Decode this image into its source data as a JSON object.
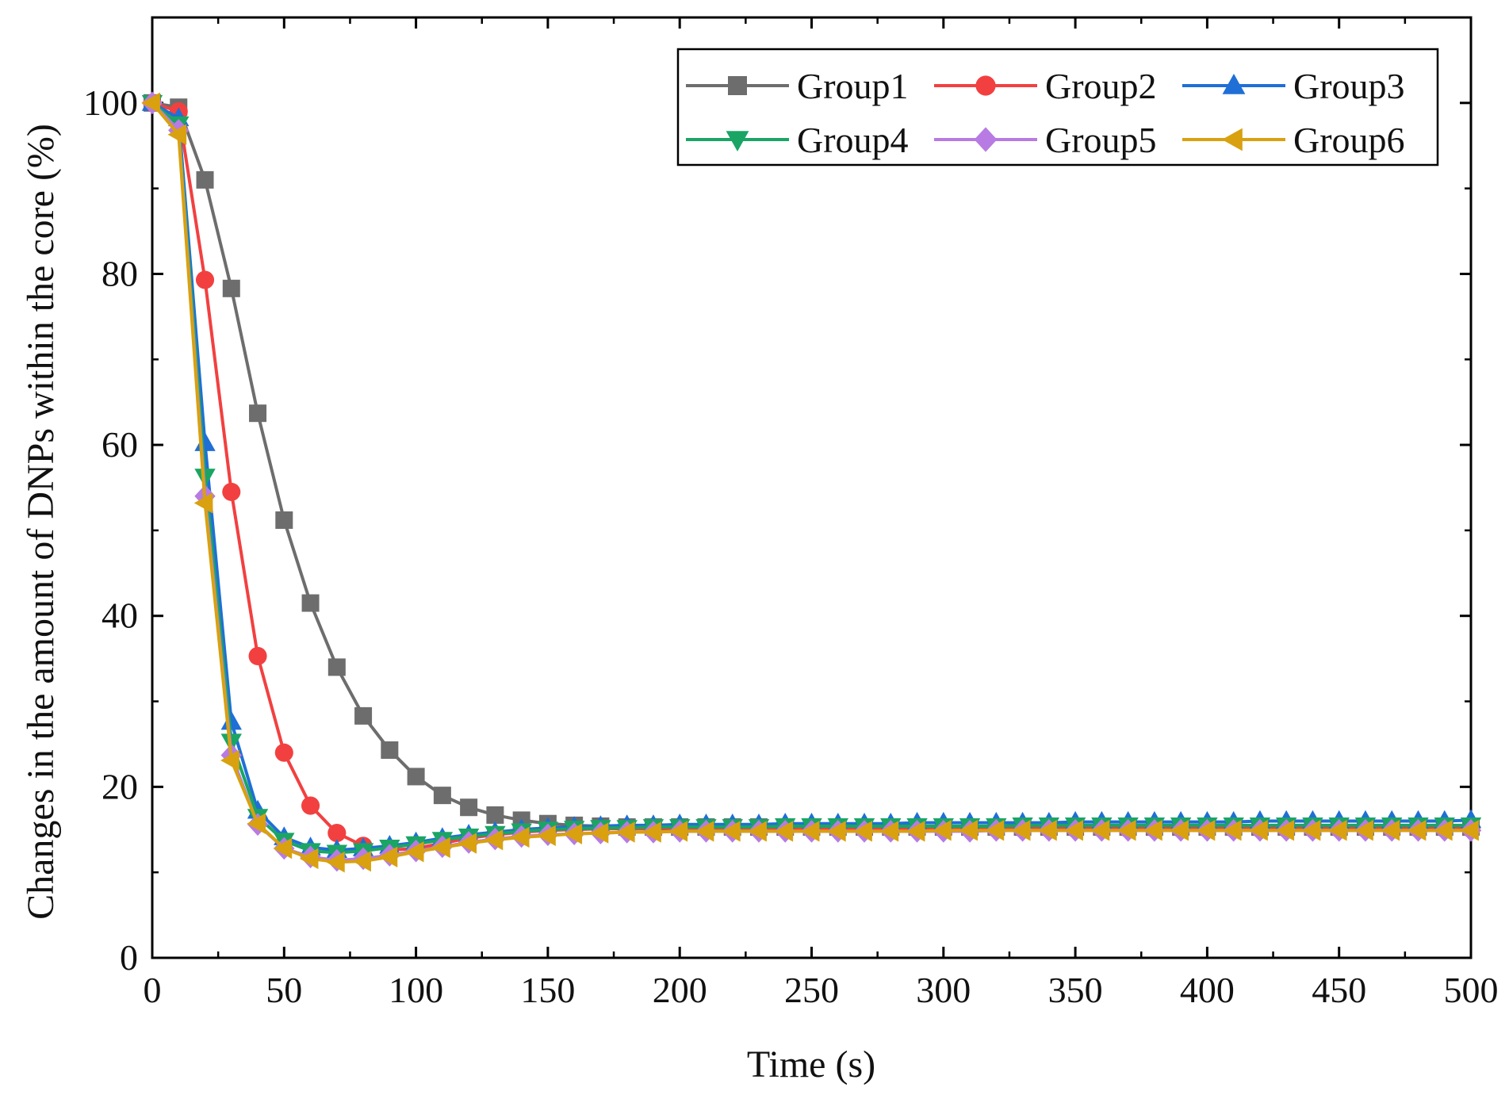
{
  "chart_data": {
    "type": "line",
    "title": "",
    "xlabel": "Time (s)",
    "ylabel": "Changes in the amount of DNPs within the core (%)",
    "xlim": [
      0,
      500
    ],
    "ylim": [
      0,
      110
    ],
    "xticks": [
      0,
      50,
      100,
      150,
      200,
      250,
      300,
      350,
      400,
      450,
      500
    ],
    "yticks": [
      0,
      20,
      40,
      60,
      80,
      100
    ],
    "xtick_labels": [
      "0",
      "50",
      "100",
      "150",
      "200",
      "250",
      "300",
      "350",
      "400",
      "450",
      "500"
    ],
    "ytick_labels": [
      "0",
      "20",
      "40",
      "60",
      "80",
      "100"
    ],
    "grid": false,
    "legend_position": "top-right",
    "x": [
      0,
      10,
      20,
      30,
      40,
      50,
      60,
      70,
      80,
      90,
      100,
      110,
      120,
      130,
      140,
      150,
      160,
      170,
      180,
      190,
      200,
      210,
      220,
      230,
      240,
      250,
      260,
      270,
      280,
      290,
      300,
      310,
      320,
      330,
      340,
      350,
      360,
      370,
      380,
      390,
      400,
      410,
      420,
      430,
      440,
      450,
      460,
      470,
      480,
      490,
      500
    ],
    "series": [
      {
        "name": "Group1",
        "marker": "square",
        "color": "#6d6d6d",
        "values": [
          100,
          99.5,
          91,
          78.3,
          63.7,
          51.2,
          41.5,
          34,
          28.3,
          24.3,
          21.2,
          19,
          17.6,
          16.7,
          16.1,
          15.7,
          15.5,
          15.4,
          15.3,
          15.3,
          15.3,
          15.3,
          15.3,
          15.3,
          15.3,
          15.3,
          15.3,
          15.3,
          15.3,
          15.3,
          15.3,
          15.3,
          15.3,
          15.3,
          15.3,
          15.3,
          15.3,
          15.3,
          15.3,
          15.3,
          15.3,
          15.3,
          15.3,
          15.3,
          15.3,
          15.3,
          15.3,
          15.3,
          15.3,
          15.3,
          15.3
        ]
      },
      {
        "name": "Group2",
        "marker": "circle",
        "color": "#f24040",
        "values": [
          100,
          99,
          79.3,
          54.5,
          35.3,
          24,
          17.8,
          14.6,
          13.1,
          12.6,
          12.8,
          13.4,
          14,
          14.4,
          14.7,
          14.9,
          15,
          15.1,
          15.1,
          15.1,
          15.1,
          15.1,
          15.1,
          15.1,
          15.1,
          15.1,
          15.1,
          15.1,
          15.1,
          15.1,
          15.1,
          15.1,
          15.1,
          15.1,
          15.1,
          15.1,
          15.1,
          15.1,
          15.1,
          15.1,
          15.1,
          15.1,
          15.1,
          15.1,
          15.1,
          15.1,
          15.1,
          15.1,
          15.1,
          15.1,
          15.1
        ]
      },
      {
        "name": "Group3",
        "marker": "triangle-up",
        "color": "#1f6fd6",
        "values": [
          100,
          98.2,
          60.2,
          27.6,
          17.2,
          14.1,
          12.9,
          12.6,
          12.8,
          13.1,
          13.5,
          14,
          14.4,
          14.7,
          15,
          15.2,
          15.3,
          15.4,
          15.5,
          15.5,
          15.6,
          15.6,
          15.6,
          15.6,
          15.7,
          15.7,
          15.7,
          15.7,
          15.7,
          15.8,
          15.8,
          15.8,
          15.8,
          15.8,
          15.8,
          15.9,
          15.9,
          15.9,
          15.9,
          15.9,
          15.9,
          15.9,
          16,
          16,
          16,
          16,
          16,
          16,
          16,
          16,
          16.1
        ]
      },
      {
        "name": "Group4",
        "marker": "triangle-down",
        "color": "#1aa565",
        "values": [
          100,
          97.5,
          56.3,
          25.3,
          16.5,
          13.7,
          12.5,
          12.3,
          12.5,
          12.9,
          13.3,
          13.8,
          14.2,
          14.5,
          14.8,
          15,
          15.1,
          15.2,
          15.2,
          15.3,
          15.3,
          15.3,
          15.3,
          15.3,
          15.4,
          15.4,
          15.4,
          15.4,
          15.4,
          15.4,
          15.4,
          15.4,
          15.4,
          15.5,
          15.5,
          15.5,
          15.5,
          15.5,
          15.5,
          15.5,
          15.5,
          15.5,
          15.5,
          15.5,
          15.5,
          15.5,
          15.5,
          15.5,
          15.5,
          15.5,
          15.5
        ]
      },
      {
        "name": "Group5",
        "marker": "diamond",
        "color": "#b77be3",
        "values": [
          100,
          96.8,
          54,
          23.7,
          15.6,
          12.8,
          11.8,
          11.4,
          11.6,
          12,
          12.5,
          13,
          13.5,
          13.9,
          14.2,
          14.4,
          14.5,
          14.6,
          14.7,
          14.7,
          14.8,
          14.8,
          14.8,
          14.8,
          14.8,
          14.8,
          14.8,
          14.8,
          14.8,
          14.8,
          14.8,
          14.8,
          14.9,
          14.9,
          14.9,
          14.9,
          14.9,
          14.9,
          14.9,
          14.9,
          14.9,
          14.9,
          14.9,
          14.9,
          14.9,
          14.9,
          14.9,
          14.9,
          14.9,
          14.9,
          14.9
        ]
      },
      {
        "name": "Group6",
        "marker": "triangle-left",
        "color": "#d9a10f",
        "values": [
          100,
          96.3,
          53.2,
          23.1,
          15.7,
          12.8,
          11.6,
          11.2,
          11.3,
          11.8,
          12.4,
          12.9,
          13.4,
          13.8,
          14.1,
          14.3,
          14.5,
          14.6,
          14.7,
          14.7,
          14.8,
          14.8,
          14.8,
          14.8,
          14.8,
          14.8,
          14.8,
          14.8,
          14.8,
          14.8,
          14.9,
          14.9,
          14.9,
          14.9,
          14.9,
          14.9,
          14.9,
          14.9,
          14.9,
          14.9,
          14.9,
          14.9,
          14.9,
          14.9,
          14.9,
          14.9,
          14.9,
          14.9,
          14.9,
          14.9,
          14.9
        ]
      }
    ]
  }
}
